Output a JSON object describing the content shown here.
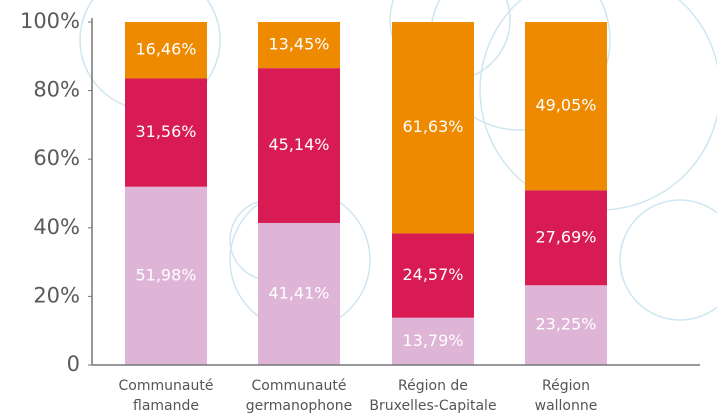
{
  "chart_data": {
    "type": "stacked_bar",
    "categories": [
      [
        "Communauté",
        "flamande"
      ],
      [
        "Communauté",
        "germanophone"
      ],
      [
        "Région de",
        "Bruxelles-Capitale"
      ],
      [
        "Région",
        "wallonne"
      ]
    ],
    "series": [
      {
        "color": "#dfb5d7",
        "values": [
          51.98,
          41.41,
          13.79,
          23.25
        ],
        "value_labels": [
          "51,98%",
          "41,41%",
          "13,79%",
          "23,25%"
        ]
      },
      {
        "color": "#d81b52",
        "values": [
          31.56,
          45.14,
          24.57,
          27.69
        ],
        "value_labels": [
          "31,56%",
          "45,14%",
          "24,57%",
          "27,69%"
        ]
      },
      {
        "color": "#ee8a00",
        "values": [
          16.46,
          13.45,
          61.63,
          49.05
        ],
        "value_labels": [
          "16,46%",
          "13,45%",
          "61,63%",
          "49,05%"
        ]
      }
    ],
    "ylim": [
      0,
      100
    ],
    "yticks": [
      0,
      {
        "value": 20,
        "label": "20%"
      },
      {
        "value": 40,
        "label": "40%"
      },
      {
        "value": 60,
        "label": "60%"
      },
      {
        "value": 80,
        "label": "80%"
      },
      {
        "value": 100,
        "label": "100%"
      }
    ]
  }
}
